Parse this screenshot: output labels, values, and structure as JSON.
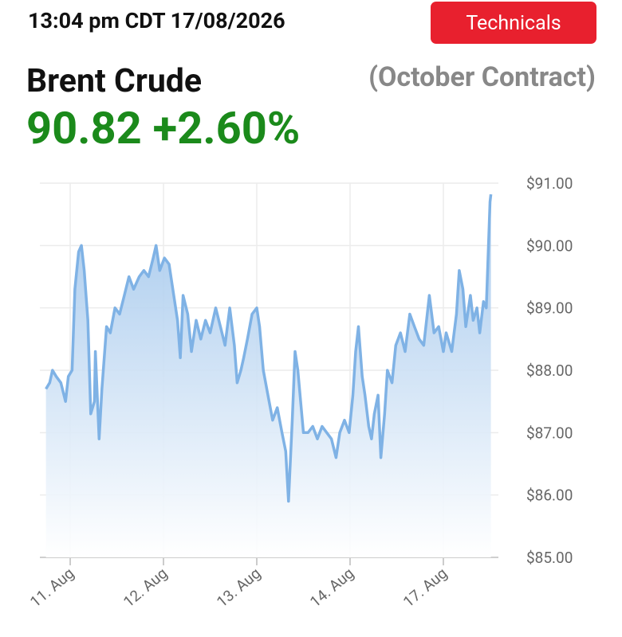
{
  "header": {
    "time": "13:04 pm CDT 17/08/2026",
    "button": "Technicals",
    "instrument": "Brent Crude",
    "contract": "(October Contract)",
    "quote": "90.82 +2.60%"
  },
  "chart_data": {
    "type": "area",
    "x": [
      -0.26,
      -0.22,
      -0.19,
      -0.15,
      -0.1,
      -0.05,
      -0.02,
      0.02,
      0.05,
      0.09,
      0.12,
      0.15,
      0.19,
      0.22,
      0.26,
      0.27,
      0.31,
      0.34,
      0.39,
      0.43,
      0.48,
      0.53,
      0.58,
      0.63,
      0.68,
      0.74,
      0.79,
      0.84,
      0.89,
      0.92,
      0.96,
      1.01,
      1.06,
      1.11,
      1.15,
      1.18,
      1.21,
      1.26,
      1.3,
      1.35,
      1.4,
      1.45,
      1.5,
      1.56,
      1.61,
      1.66,
      1.71,
      1.76,
      1.79,
      1.83,
      1.86,
      1.9,
      1.95,
      2.0,
      2.03,
      2.07,
      2.12,
      2.17,
      2.22,
      2.27,
      2.31,
      2.34,
      2.38,
      2.41,
      2.44,
      2.5,
      2.55,
      2.6,
      2.65,
      2.7,
      2.75,
      2.8,
      2.85,
      2.89,
      2.94,
      2.99,
      3.03,
      3.06,
      3.09,
      3.13,
      3.16,
      3.2,
      3.23,
      3.26,
      3.3,
      3.33,
      3.37,
      3.4,
      3.45,
      3.49,
      3.54,
      3.59,
      3.64,
      3.69,
      3.74,
      3.79,
      3.85,
      3.9,
      3.95,
      4.0,
      4.03,
      4.09,
      4.14,
      4.17,
      4.21,
      4.24,
      4.29,
      4.32,
      4.36,
      4.39,
      4.43,
      4.46,
      4.5,
      4.51
    ],
    "series": [
      {
        "color": "#7fb2e5",
        "values": [
          87.7,
          87.8,
          88.0,
          87.9,
          87.8,
          87.5,
          87.9,
          88.0,
          89.3,
          89.9,
          90.0,
          89.6,
          88.8,
          87.3,
          87.5,
          88.3,
          86.9,
          87.7,
          88.7,
          88.6,
          89.0,
          88.9,
          89.2,
          89.5,
          89.3,
          89.5,
          89.6,
          89.5,
          89.8,
          90.0,
          89.6,
          89.8,
          89.7,
          89.2,
          88.8,
          88.2,
          89.2,
          88.9,
          88.3,
          88.8,
          88.5,
          88.8,
          88.6,
          89.0,
          88.7,
          88.4,
          89.0,
          88.4,
          87.8,
          88.0,
          88.2,
          88.5,
          88.9,
          89.0,
          88.7,
          88.0,
          87.6,
          87.2,
          87.4,
          87.0,
          86.7,
          85.9,
          87.2,
          88.3,
          88.0,
          87.0,
          87.0,
          87.1,
          86.9,
          87.1,
          87.0,
          86.9,
          86.6,
          87.0,
          87.2,
          87.0,
          87.6,
          88.3,
          88.7,
          87.9,
          87.6,
          87.1,
          86.9,
          87.3,
          87.6,
          86.6,
          87.3,
          88.0,
          87.8,
          88.4,
          88.6,
          88.3,
          88.9,
          88.7,
          88.5,
          88.4,
          89.2,
          88.6,
          88.7,
          88.3,
          88.6,
          88.3,
          88.9,
          89.6,
          89.3,
          88.7,
          89.2,
          88.8,
          89.0,
          88.6,
          89.1,
          89.0,
          90.7,
          90.82
        ]
      }
    ],
    "xlim": [
      -0.325,
      4.59
    ],
    "xticks": [
      {
        "value": 0,
        "label": "11. Aug"
      },
      {
        "value": 1,
        "label": "12. Aug"
      },
      {
        "value": 2,
        "label": "13. Aug"
      },
      {
        "value": 3,
        "label": "14. Aug"
      },
      {
        "value": 4,
        "label": "17. Aug"
      }
    ],
    "ylim": [
      85,
      91
    ],
    "yticks": [
      {
        "value": 85,
        "label": "$85.00"
      },
      {
        "value": 86,
        "label": "$86.00"
      },
      {
        "value": 87,
        "label": "$87.00"
      },
      {
        "value": 88,
        "label": "$88.00"
      },
      {
        "value": 89,
        "label": "$89.00"
      },
      {
        "value": 90,
        "label": "$90.00"
      },
      {
        "value": 91,
        "label": "$91.00"
      }
    ],
    "grid": true
  }
}
